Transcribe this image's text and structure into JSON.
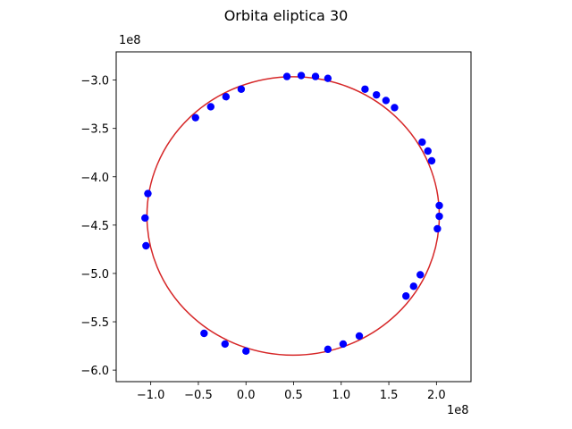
{
  "chart_data": {
    "type": "scatter",
    "title": "Orbita eliptica 30",
    "xlabel": "",
    "ylabel": "",
    "x_offset_label": "1e8",
    "y_offset_label": "1e8",
    "xlim": [
      -1.3629,
      2.3629
    ],
    "ylim": [
      -6.1191,
      -2.7078
    ],
    "x_ticks": [
      {
        "value": -1.0,
        "label": "−1.0"
      },
      {
        "value": -0.5,
        "label": "−0.5"
      },
      {
        "value": 0.0,
        "label": "0.0"
      },
      {
        "value": 0.5,
        "label": "0.5"
      },
      {
        "value": 1.0,
        "label": "1.0"
      },
      {
        "value": 1.5,
        "label": "1.5"
      },
      {
        "value": 2.0,
        "label": "2.0"
      }
    ],
    "y_ticks": [
      {
        "value": -3.0,
        "label": "−3.0"
      },
      {
        "value": -3.5,
        "label": "−3.5"
      },
      {
        "value": -4.0,
        "label": "−4.0"
      },
      {
        "value": -4.5,
        "label": "−4.5"
      },
      {
        "value": -5.0,
        "label": "−5.0"
      },
      {
        "value": -5.5,
        "label": "−5.5"
      },
      {
        "value": -6.0,
        "label": "−6.0"
      }
    ],
    "grid": false,
    "units_note": "values in units of 1e8",
    "fitted_ellipse": {
      "center": [
        0.495,
        -4.405
      ],
      "semi_axis_x": 1.535,
      "semi_axis_y": 1.44,
      "color": "#d62728"
    },
    "series": [
      {
        "marker": "circle",
        "color": "#0000ff",
        "points": [
          {
            "x": 0.43,
            "y": -2.963
          },
          {
            "x": 0.58,
            "y": -2.953
          },
          {
            "x": 0.73,
            "y": -2.963
          },
          {
            "x": 0.86,
            "y": -2.982
          },
          {
            "x": -0.05,
            "y": -3.094
          },
          {
            "x": -0.21,
            "y": -3.172
          },
          {
            "x": -0.37,
            "y": -3.276
          },
          {
            "x": -0.53,
            "y": -3.389
          },
          {
            "x": 1.25,
            "y": -3.094
          },
          {
            "x": 1.37,
            "y": -3.153
          },
          {
            "x": 1.47,
            "y": -3.211
          },
          {
            "x": 1.56,
            "y": -3.285
          },
          {
            "x": 1.85,
            "y": -3.642
          },
          {
            "x": 1.91,
            "y": -3.734
          },
          {
            "x": 1.95,
            "y": -3.835
          },
          {
            "x": -1.03,
            "y": -4.174
          },
          {
            "x": -1.06,
            "y": -4.427
          },
          {
            "x": -1.05,
            "y": -4.714
          },
          {
            "x": 2.03,
            "y": -4.298
          },
          {
            "x": 2.03,
            "y": -4.409
          },
          {
            "x": 2.01,
            "y": -4.538
          },
          {
            "x": 1.83,
            "y": -5.014
          },
          {
            "x": 1.76,
            "y": -5.133
          },
          {
            "x": 1.68,
            "y": -5.234
          },
          {
            "x": -0.44,
            "y": -5.62
          },
          {
            "x": -0.22,
            "y": -5.73
          },
          {
            "x": 0.0,
            "y": -5.803
          },
          {
            "x": 0.86,
            "y": -5.785
          },
          {
            "x": 1.02,
            "y": -5.73
          },
          {
            "x": 1.19,
            "y": -5.647
          }
        ]
      }
    ]
  }
}
